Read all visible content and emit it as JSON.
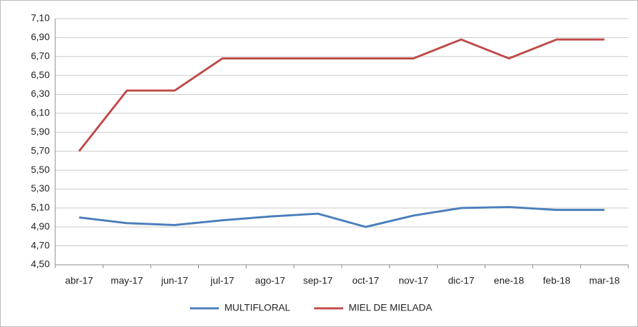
{
  "chart_data": {
    "type": "line",
    "categories": [
      "abr-17",
      "may-17",
      "jun-17",
      "jul-17",
      "ago-17",
      "sep-17",
      "oct-17",
      "nov-17",
      "dic-17",
      "ene-18",
      "feb-18",
      "mar-18"
    ],
    "series": [
      {
        "name": "MULTIFLORAL",
        "color": "#4a7ebb",
        "values": [
          5.0,
          4.94,
          4.92,
          4.97,
          5.01,
          5.04,
          4.9,
          5.02,
          5.1,
          5.11,
          5.08,
          5.08
        ]
      },
      {
        "name": "MIEL DE MIELADA",
        "color": "#be4b48",
        "values": [
          5.7,
          6.34,
          6.34,
          6.68,
          6.68,
          6.68,
          6.68,
          6.68,
          6.88,
          6.68,
          6.88,
          6.88
        ]
      }
    ],
    "ylim": [
      4.5,
      7.1
    ],
    "yticks": [
      {
        "value": 4.5,
        "label": "4,50"
      },
      {
        "value": 4.7,
        "label": "4,70"
      },
      {
        "value": 4.9,
        "label": "4,90"
      },
      {
        "value": 5.1,
        "label": "5,10"
      },
      {
        "value": 5.3,
        "label": "5,30"
      },
      {
        "value": 5.5,
        "label": "5,50"
      },
      {
        "value": 5.7,
        "label": "5,70"
      },
      {
        "value": 5.9,
        "label": "5,90"
      },
      {
        "value": 6.1,
        "label": "6,10"
      },
      {
        "value": 6.3,
        "label": "6,30"
      },
      {
        "value": 6.5,
        "label": "6,50"
      },
      {
        "value": 6.7,
        "label": "6,70"
      },
      {
        "value": 6.9,
        "label": "6,90"
      },
      {
        "value": 7.1,
        "label": "7,10"
      }
    ],
    "grid": true,
    "legend": "bottom"
  }
}
